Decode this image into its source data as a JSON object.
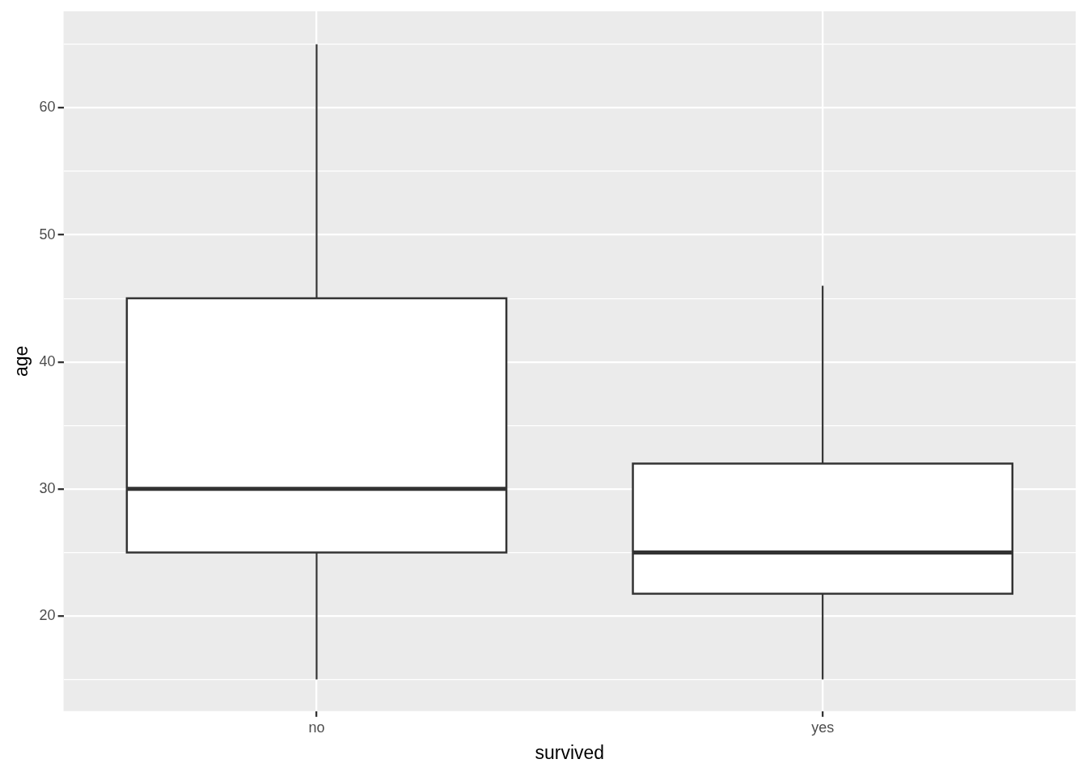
{
  "chart_data": {
    "type": "box",
    "xlabel": "survived",
    "ylabel": "age",
    "categories": [
      "no",
      "yes"
    ],
    "ylim": [
      12.5,
      67.6
    ],
    "yticks": [
      {
        "value": 15,
        "label": null
      },
      20,
      {
        "value": 25,
        "label": null
      },
      30,
      {
        "value": 35,
        "label": null
      },
      40,
      {
        "value": 45,
        "label": null
      },
      50,
      {
        "value": 55,
        "label": null
      },
      60,
      {
        "value": 65,
        "label": null
      }
    ],
    "grid": true,
    "series": [
      {
        "color": "#ffffff",
        "boxes": [
          {
            "low": 15,
            "q1": 25,
            "median": 30,
            "q3": 45,
            "high": 65
          },
          {
            "low": 15,
            "q1": 21.75,
            "median": 25,
            "q3": 32,
            "high": 46
          }
        ]
      }
    ]
  }
}
